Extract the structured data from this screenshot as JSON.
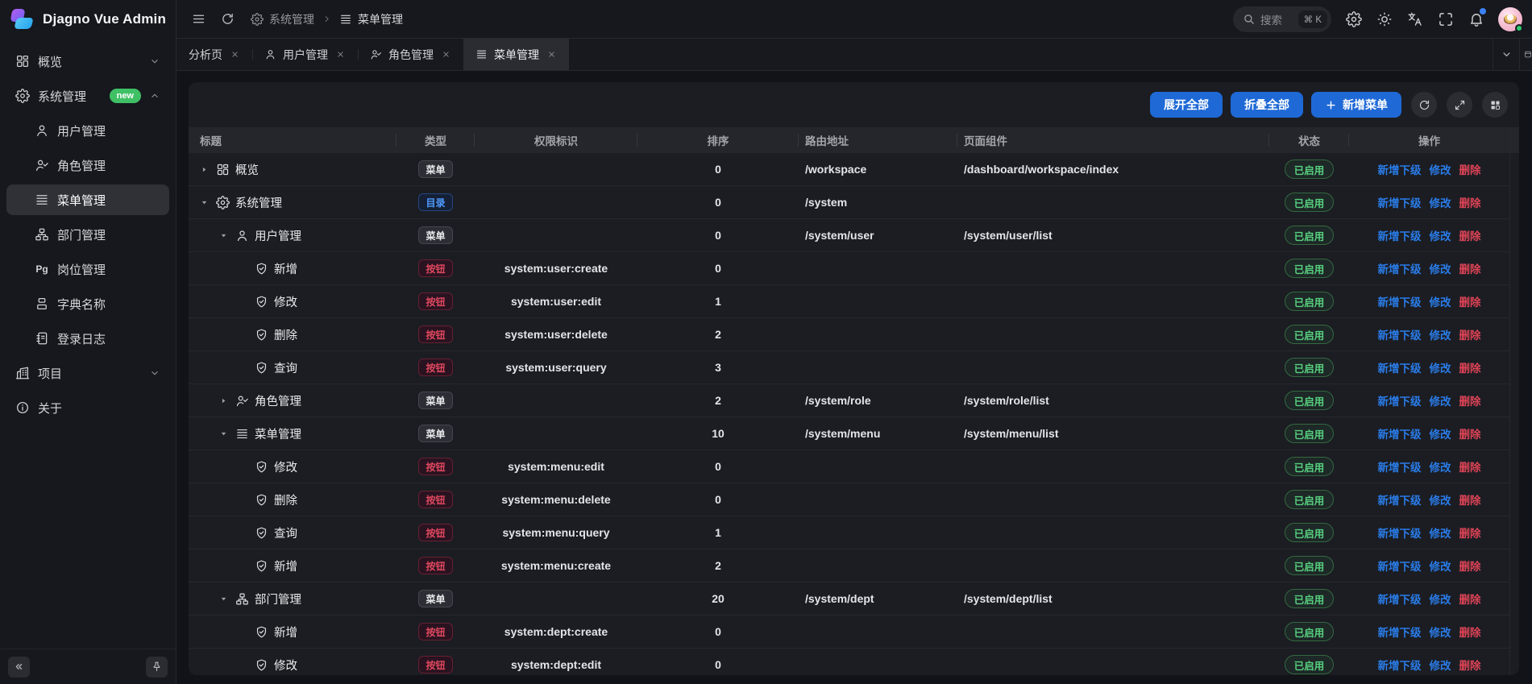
{
  "app": {
    "title": "Djagno Vue Admin"
  },
  "topbar": {
    "breadcrumb": [
      {
        "icon": "gear",
        "label": "系统管理"
      },
      {
        "icon": "menu",
        "label": "菜单管理"
      }
    ],
    "search": {
      "label": "搜索",
      "shortcut": "⌘ K"
    }
  },
  "tabs": [
    {
      "label": "分析页",
      "icon": "",
      "active": false
    },
    {
      "label": "用户管理",
      "icon": "user",
      "active": false
    },
    {
      "label": "角色管理",
      "icon": "user-check",
      "active": false
    },
    {
      "label": "菜单管理",
      "icon": "menu",
      "active": true
    }
  ],
  "sidebar": {
    "items": [
      {
        "label": "概览",
        "icon": "grid",
        "chevron": "down",
        "children": []
      },
      {
        "label": "系统管理",
        "icon": "gear",
        "badge": "new",
        "chevron": "up",
        "children": [
          {
            "label": "用户管理",
            "icon": "user",
            "active": false
          },
          {
            "label": "角色管理",
            "icon": "user-check",
            "active": false
          },
          {
            "label": "菜单管理",
            "icon": "menu",
            "active": true
          },
          {
            "label": "部门管理",
            "icon": "org",
            "active": false
          },
          {
            "label": "岗位管理",
            "icon": "pg",
            "active": false
          },
          {
            "label": "字典名称",
            "icon": "dict",
            "active": false
          },
          {
            "label": "登录日志",
            "icon": "log",
            "active": false
          }
        ]
      },
      {
        "label": "项目",
        "icon": "building",
        "chevron": "down",
        "children": []
      },
      {
        "label": "关于",
        "icon": "about",
        "chevron": "",
        "children": []
      }
    ]
  },
  "toolbar": {
    "expand_all": "展开全部",
    "collapse_all": "折叠全部",
    "add_menu": "新增菜单"
  },
  "table": {
    "columns": [
      "标题",
      "类型",
      "权限标识",
      "排序",
      "路由地址",
      "页面组件",
      "状态",
      "操作"
    ],
    "actions": [
      "新增下级",
      "修改",
      "删除"
    ],
    "rows": [
      {
        "title": "概览",
        "icon": "grid",
        "level": 0,
        "caret": "right",
        "type": "menu",
        "type_label": "菜单",
        "perm": "",
        "sort": "0",
        "route": "/workspace",
        "component": "/dashboard/workspace/index",
        "status": "已启用"
      },
      {
        "title": "系统管理",
        "icon": "gear",
        "level": 0,
        "caret": "down",
        "type": "dir",
        "type_label": "目录",
        "perm": "",
        "sort": "0",
        "route": "/system",
        "component": "",
        "status": "已启用"
      },
      {
        "title": "用户管理",
        "icon": "user",
        "level": 1,
        "caret": "down",
        "type": "menu",
        "type_label": "菜单",
        "perm": "",
        "sort": "0",
        "route": "/system/user",
        "component": "/system/user/list",
        "status": "已启用"
      },
      {
        "title": "新增",
        "icon": "shield",
        "level": 2,
        "caret": "",
        "type": "btn",
        "type_label": "按钮",
        "perm": "system:user:create",
        "sort": "0",
        "route": "",
        "component": "",
        "status": "已启用"
      },
      {
        "title": "修改",
        "icon": "shield",
        "level": 2,
        "caret": "",
        "type": "btn",
        "type_label": "按钮",
        "perm": "system:user:edit",
        "sort": "1",
        "route": "",
        "component": "",
        "status": "已启用"
      },
      {
        "title": "删除",
        "icon": "shield",
        "level": 2,
        "caret": "",
        "type": "btn",
        "type_label": "按钮",
        "perm": "system:user:delete",
        "sort": "2",
        "route": "",
        "component": "",
        "status": "已启用"
      },
      {
        "title": "查询",
        "icon": "shield",
        "level": 2,
        "caret": "",
        "type": "btn",
        "type_label": "按钮",
        "perm": "system:user:query",
        "sort": "3",
        "route": "",
        "component": "",
        "status": "已启用"
      },
      {
        "title": "角色管理",
        "icon": "user-check",
        "level": 1,
        "caret": "right",
        "type": "menu",
        "type_label": "菜单",
        "perm": "",
        "sort": "2",
        "route": "/system/role",
        "component": "/system/role/list",
        "status": "已启用"
      },
      {
        "title": "菜单管理",
        "icon": "menu",
        "level": 1,
        "caret": "down",
        "type": "menu",
        "type_label": "菜单",
        "perm": "",
        "sort": "10",
        "route": "/system/menu",
        "component": "/system/menu/list",
        "status": "已启用"
      },
      {
        "title": "修改",
        "icon": "shield",
        "level": 2,
        "caret": "",
        "type": "btn",
        "type_label": "按钮",
        "perm": "system:menu:edit",
        "sort": "0",
        "route": "",
        "component": "",
        "status": "已启用"
      },
      {
        "title": "删除",
        "icon": "shield",
        "level": 2,
        "caret": "",
        "type": "btn",
        "type_label": "按钮",
        "perm": "system:menu:delete",
        "sort": "0",
        "route": "",
        "component": "",
        "status": "已启用"
      },
      {
        "title": "查询",
        "icon": "shield",
        "level": 2,
        "caret": "",
        "type": "btn",
        "type_label": "按钮",
        "perm": "system:menu:query",
        "sort": "1",
        "route": "",
        "component": "",
        "status": "已启用"
      },
      {
        "title": "新增",
        "icon": "shield",
        "level": 2,
        "caret": "",
        "type": "btn",
        "type_label": "按钮",
        "perm": "system:menu:create",
        "sort": "2",
        "route": "",
        "component": "",
        "status": "已启用"
      },
      {
        "title": "部门管理",
        "icon": "org",
        "level": 1,
        "caret": "down",
        "type": "menu",
        "type_label": "菜单",
        "perm": "",
        "sort": "20",
        "route": "/system/dept",
        "component": "/system/dept/list",
        "status": "已启用"
      },
      {
        "title": "新增",
        "icon": "shield",
        "level": 2,
        "caret": "",
        "type": "btn",
        "type_label": "按钮",
        "perm": "system:dept:create",
        "sort": "0",
        "route": "",
        "component": "",
        "status": "已启用"
      },
      {
        "title": "修改",
        "icon": "shield",
        "level": 2,
        "caret": "",
        "type": "btn",
        "type_label": "按钮",
        "perm": "system:dept:edit",
        "sort": "0",
        "route": "",
        "component": "",
        "status": "已启用"
      }
    ]
  },
  "colors": {
    "accent_blue": "#1e69d6",
    "badge_new_green": "#3fc065",
    "status_green": "#58d07f",
    "type_dir_blue": "#4f9bff",
    "type_btn_red": "#e0485f",
    "link_blue": "#2a7ce8",
    "link_red": "#df4456"
  }
}
